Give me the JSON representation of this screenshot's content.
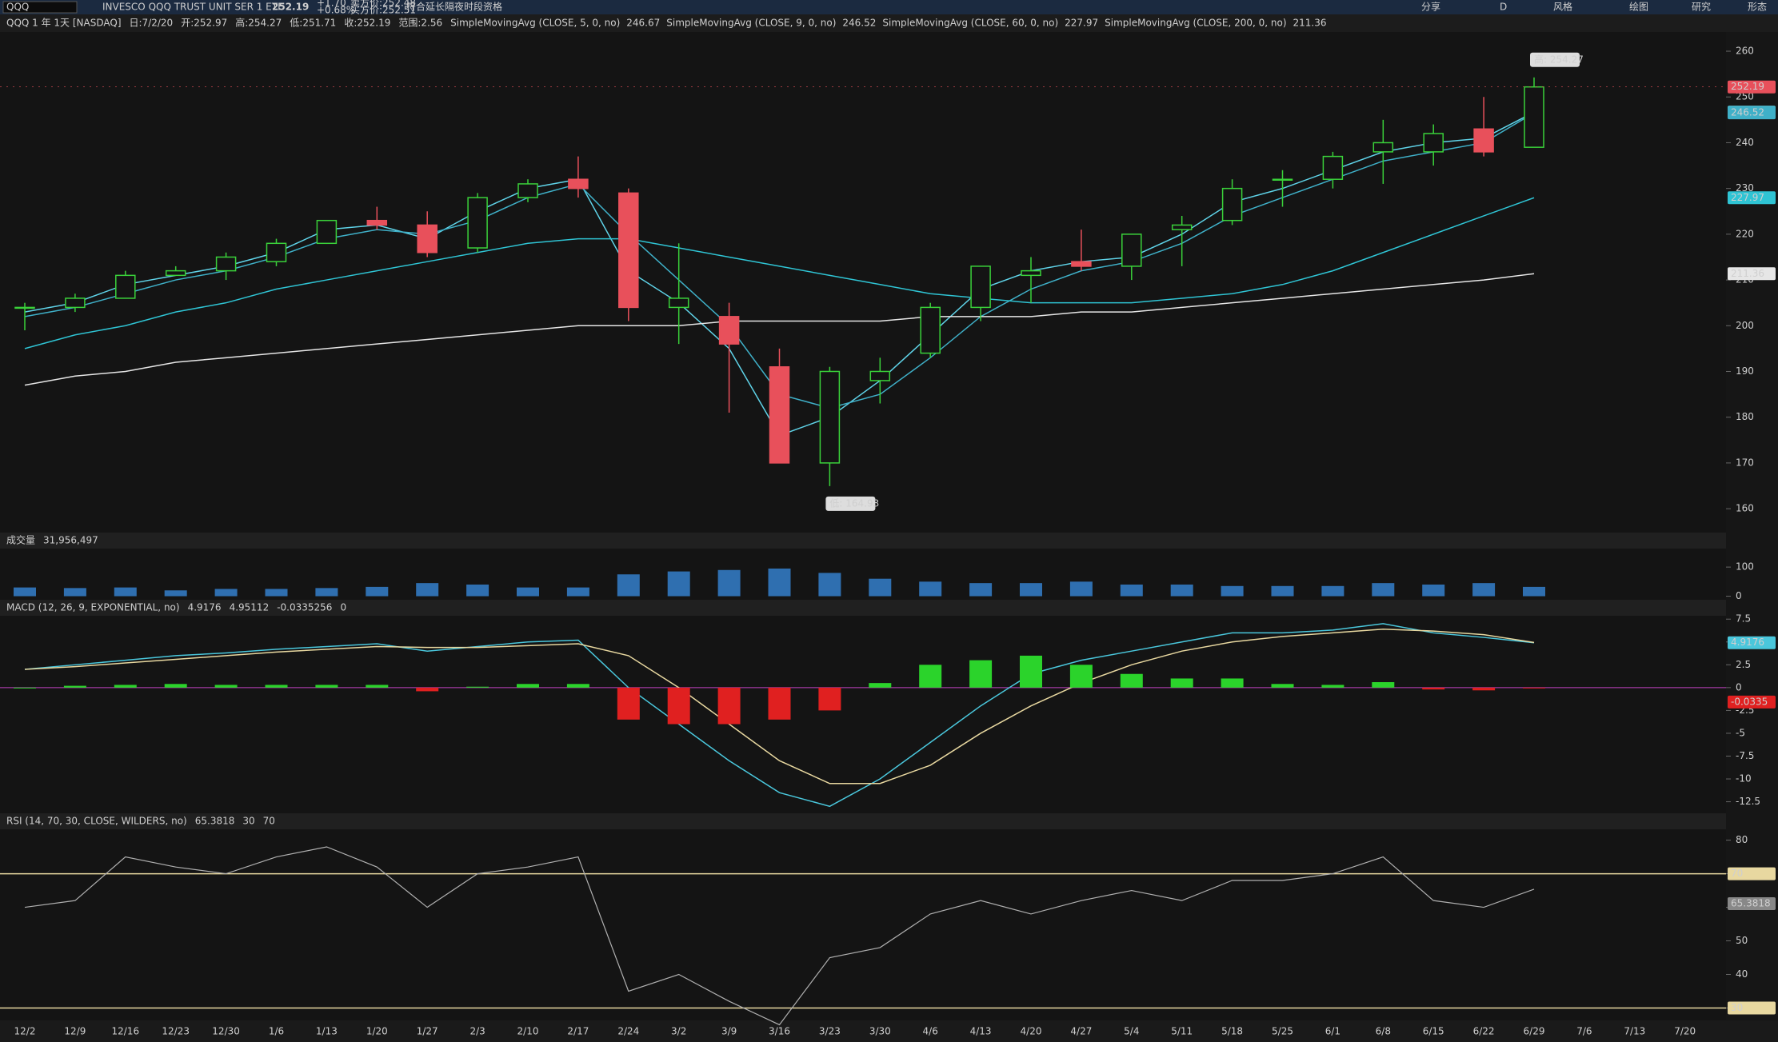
{
  "ui": {
    "symbol": "QQQ",
    "description": "INVESCO QQQ TRUST UNIT SER 1 ETF",
    "last": "252.19",
    "change": "+1.70",
    "change_pct": "+0.68%",
    "ask": "卖方价:252.48",
    "bid": "买方价:252.51",
    "extended": "符合延长隔夜时段资格",
    "toolbar": [
      "分享",
      "D",
      "风格",
      "绘图",
      "研究",
      "形态"
    ]
  },
  "chart_data": [
    {
      "type": "candlestick",
      "title": "QQQ 1 年 1天 [NASDAQ]",
      "info": [
        "日:7/2/20",
        "开:252.97",
        "高:254.27",
        "低:251.71",
        "收:252.19",
        "范围:2.56"
      ],
      "categories": [
        "12/2",
        "12/9",
        "12/16",
        "12/23",
        "12/30",
        "1/6",
        "1/13",
        "1/20",
        "1/27",
        "2/3",
        "2/10",
        "2/17",
        "2/24",
        "3/2",
        "3/9",
        "3/16",
        "3/23",
        "3/30",
        "4/6",
        "4/13",
        "4/20",
        "4/27",
        "5/4",
        "5/11",
        "5/18",
        "5/25",
        "6/1",
        "6/8",
        "6/15",
        "6/22",
        "6/29",
        "7/6",
        "7/13",
        "7/20"
      ],
      "open": [
        204,
        204,
        206,
        211,
        212,
        214,
        218,
        223,
        222,
        217,
        228,
        232,
        229,
        204,
        202,
        191,
        170,
        188,
        194,
        204,
        211,
        214,
        213,
        221,
        223,
        232,
        232,
        238,
        238,
        243,
        239,
        null,
        null,
        null
      ],
      "high": [
        205,
        207,
        212,
        213,
        216,
        219,
        223,
        226,
        225,
        229,
        232,
        237,
        230,
        218,
        205,
        195,
        191,
        193,
        205,
        213,
        215,
        221,
        220,
        224,
        232,
        234,
        238,
        245,
        244,
        250,
        254.27,
        null,
        null,
        null
      ],
      "low": [
        199,
        203,
        206,
        211,
        210,
        213,
        218,
        221,
        215,
        216,
        227,
        228,
        201,
        196,
        181,
        170,
        164.93,
        183,
        193,
        201,
        205,
        212,
        210,
        213,
        222,
        226,
        230,
        231,
        235,
        237,
        239,
        null,
        null,
        null
      ],
      "close": [
        204,
        206,
        211,
        212,
        215,
        218,
        223,
        222,
        216,
        228,
        231,
        230,
        204,
        206,
        196,
        170,
        190,
        190,
        204,
        213,
        212,
        213,
        220,
        222,
        230,
        232,
        237,
        240,
        242,
        238,
        252.19,
        null,
        null,
        null
      ],
      "up_color": "#3ad13a",
      "down_color": "#e8505b",
      "annotations": [
        "高: 254.27",
        "低: 164.93"
      ],
      "series": [
        {
          "name": "SimpleMovingAvg (CLOSE, 5, 0, no)",
          "color": "#5fd3e8",
          "values": [
            203,
            205,
            209,
            211,
            213,
            216,
            221,
            222,
            219,
            225,
            230,
            232,
            212,
            205,
            195,
            176,
            180,
            188,
            198,
            208,
            212,
            214,
            215,
            220,
            227,
            230,
            234,
            238,
            240,
            241,
            246.67,
            null,
            null,
            null
          ]
        },
        {
          "name": "SimpleMovingAvg (CLOSE, 9, 0, no)",
          "color": "#3fb0c8",
          "values": [
            202,
            204,
            207,
            210,
            212,
            215,
            219,
            221,
            220,
            223,
            228,
            231,
            220,
            210,
            200,
            185,
            182,
            185,
            193,
            202,
            208,
            212,
            214,
            218,
            224,
            228,
            232,
            236,
            238,
            240,
            246.52,
            null,
            null,
            null
          ]
        },
        {
          "name": "SimpleMovingAvg (CLOSE, 60, 0, no)",
          "color": "#2fc4d4",
          "values": [
            195,
            198,
            200,
            203,
            205,
            208,
            210,
            212,
            214,
            216,
            218,
            219,
            219,
            217,
            215,
            213,
            211,
            209,
            207,
            206,
            205,
            205,
            205,
            206,
            207,
            209,
            212,
            216,
            220,
            224,
            227.97,
            null,
            null,
            null
          ]
        },
        {
          "name": "SimpleMovingAvg (CLOSE, 200, 0, no)",
          "color": "#e6e6e6",
          "values": [
            187,
            189,
            190,
            192,
            193,
            194,
            195,
            196,
            197,
            198,
            199,
            200,
            200,
            200,
            201,
            201,
            201,
            201,
            202,
            202,
            202,
            203,
            203,
            204,
            205,
            206,
            207,
            208,
            209,
            210,
            211.36,
            null,
            null,
            null
          ]
        }
      ],
      "ylim": [
        155.3,
        264.2
      ],
      "yticks": [
        160,
        170,
        180,
        190,
        200,
        210,
        220,
        230,
        240,
        250,
        260
      ],
      "grid": false
    },
    {
      "type": "bar",
      "title": "成交量",
      "last_label": "31,956,497",
      "color": "#2f6fb0",
      "values": [
        30,
        28,
        30,
        20,
        25,
        25,
        28,
        32,
        45,
        40,
        30,
        30,
        75,
        85,
        90,
        95,
        80,
        60,
        50,
        45,
        45,
        50,
        40,
        40,
        35,
        35,
        35,
        45,
        40,
        45,
        32,
        null,
        null,
        null
      ],
      "ylim": [
        -4,
        158
      ],
      "yticks": [
        0,
        100
      ]
    },
    {
      "type": "combo",
      "title": "MACD (12, 26, 9, EXPONENTIAL, no)",
      "legend_values": [
        "4.9176",
        "4.95112",
        "-0.0335256",
        "0"
      ],
      "last_label": "-0.0335",
      "series": [
        {
          "type": "line",
          "color": "#4ac7dc",
          "values": [
            2,
            2.5,
            3,
            3.5,
            3.8,
            4.2,
            4.5,
            4.8,
            4,
            4.5,
            5,
            5.2,
            0,
            -4,
            -8,
            -11.5,
            -13,
            -10,
            -6,
            -2,
            1.5,
            3,
            4,
            5,
            6,
            6,
            6.3,
            7,
            6,
            5.5,
            4.9176,
            null,
            null,
            null
          ]
        },
        {
          "type": "line",
          "color": "#e8d8a0",
          "values": [
            2,
            2.3,
            2.7,
            3.1,
            3.5,
            3.9,
            4.2,
            4.5,
            4.4,
            4.4,
            4.6,
            4.8,
            3.5,
            0,
            -4,
            -8,
            -10.5,
            -10.5,
            -8.5,
            -5,
            -2,
            0.5,
            2.5,
            4,
            5,
            5.6,
            6,
            6.4,
            6.2,
            5.8,
            4.95112,
            null,
            null,
            null
          ]
        },
        {
          "type": "bar",
          "color": "#2bd32b",
          "down_color": "#e02020",
          "values": [
            0,
            0.2,
            0.3,
            0.4,
            0.3,
            0.3,
            0.3,
            0.3,
            -0.4,
            0.1,
            0.4,
            0.4,
            -3.5,
            -4,
            -4,
            -3.5,
            -2.5,
            0.5,
            2.5,
            3,
            3.5,
            2.5,
            1.5,
            1,
            1,
            0.4,
            0.3,
            0.6,
            -0.2,
            -0.3,
            -0.0335256,
            null,
            null,
            null
          ]
        }
      ],
      "ylim": [
        -13.5,
        7.87
      ],
      "yticks": [
        7.5,
        5,
        2.5,
        0,
        -2.5,
        -5,
        -7.5,
        -10,
        -12.5
      ]
    },
    {
      "type": "line",
      "title": "RSI (14, 70, 30, CLOSE, WILDERS, no)",
      "legend_values": [
        "65.3818",
        "30",
        "70"
      ],
      "color": "#b0b0b0",
      "level_color": "#e8d8a0",
      "levels": [
        70,
        30
      ],
      "values": [
        60,
        62,
        75,
        72,
        70,
        75,
        78,
        72,
        60,
        70,
        72,
        75,
        35,
        40,
        32,
        25,
        45,
        48,
        58,
        62,
        58,
        62,
        65,
        62,
        68,
        68,
        70,
        75,
        62,
        60,
        65.3818,
        null,
        null,
        null
      ],
      "ylim": [
        26.3,
        83
      ],
      "yticks": [
        30,
        40,
        50,
        60,
        70,
        80
      ]
    }
  ]
}
